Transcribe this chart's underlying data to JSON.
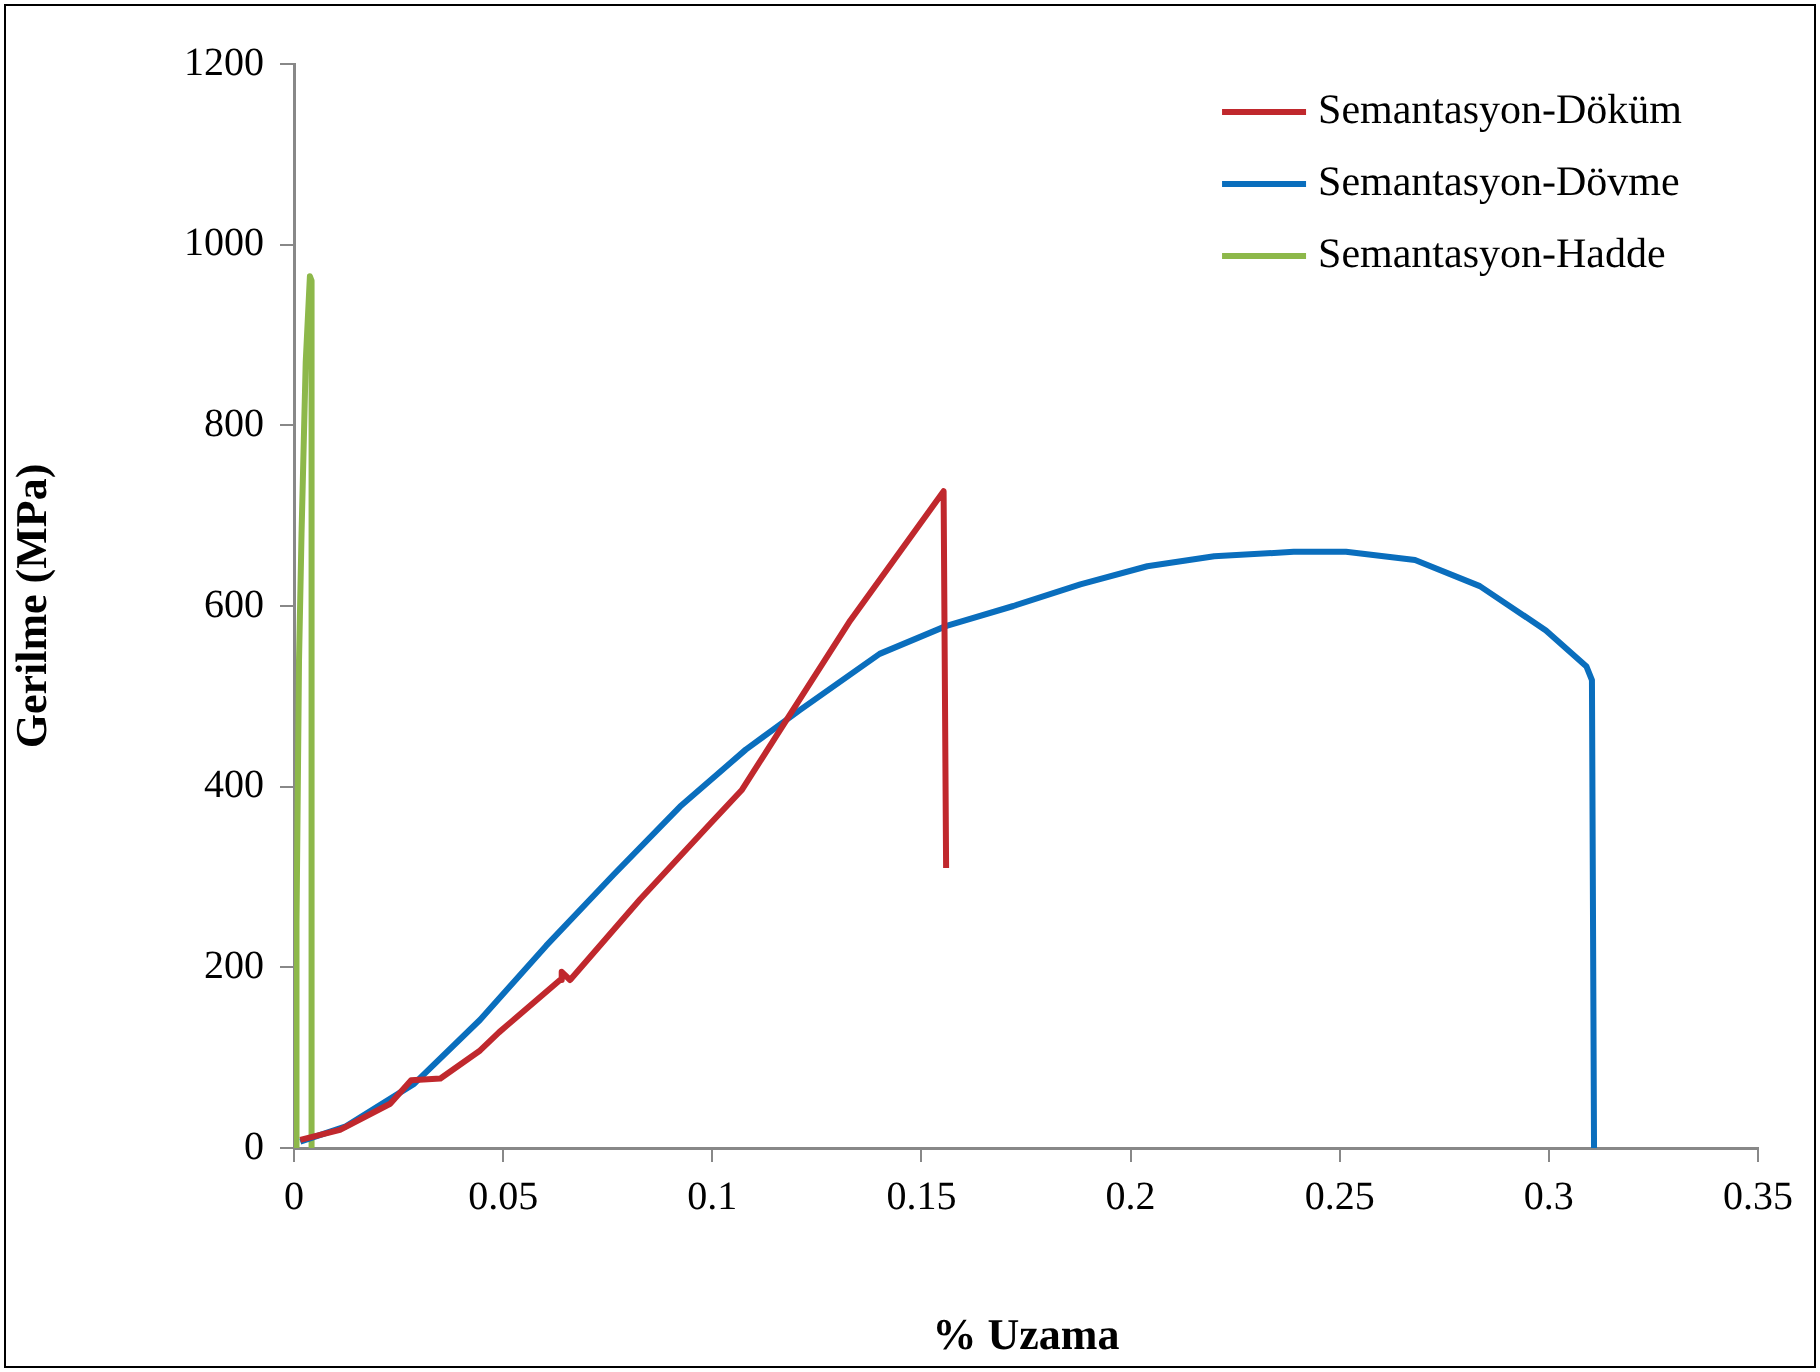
{
  "chart_data": {
    "type": "line",
    "xlabel": "% Uzama",
    "ylabel": "Gerilme (MPa)",
    "xlim": [
      0,
      0.35
    ],
    "xticks": [
      0,
      0.05,
      0.1,
      0.15,
      0.2,
      0.25,
      0.3,
      0.35
    ],
    "ylim": [
      0,
      1200
    ],
    "yticks": [
      0,
      200,
      400,
      600,
      800,
      1000,
      1200
    ],
    "grid": false,
    "legend": "top right",
    "marker": "none",
    "line_style": "solid",
    "series": [
      {
        "name": "Semantasyon-Döküm",
        "color": "#c0282d",
        "x": [
          0.0015,
          0.011,
          0.023,
          0.028,
          0.035,
          0.0445,
          0.049,
          0.0636,
          0.064,
          0.066,
          0.0827,
          0.0995,
          0.107,
          0.1186,
          0.133,
          0.1553,
          0.1559
        ],
        "values": [
          9,
          20,
          49,
          75,
          77,
          108,
          128,
          186,
          195,
          186,
          275,
          359,
          396,
          480,
          584,
          727,
          310
        ]
      },
      {
        "name": "Semantasyon-Dövme",
        "color": "#0a6ebd",
        "x": [
          0.0015,
          0.0124,
          0.0287,
          0.0445,
          0.0603,
          0.0765,
          0.0923,
          0.108,
          0.121,
          0.14,
          0.156,
          0.172,
          0.188,
          0.204,
          0.22,
          0.239,
          0.2515,
          0.268,
          0.2835,
          0.2993,
          0.309,
          0.3103,
          0.3108
        ],
        "values": [
          7,
          24,
          71,
          142,
          224,
          303,
          378,
          441,
          485,
          547,
          578,
          600,
          624,
          644,
          655,
          660,
          660,
          651,
          622,
          573,
          533,
          518,
          0
        ]
      },
      {
        "name": "Semantasyon-Hadde",
        "color": "#8db84a",
        "x": [
          0.0005,
          0.0006,
          0.0012,
          0.0018,
          0.0028,
          0.0038,
          0.0042,
          0.0042
        ],
        "values": [
          0,
          250,
          540,
          680,
          870,
          965,
          960,
          0
        ]
      }
    ]
  }
}
